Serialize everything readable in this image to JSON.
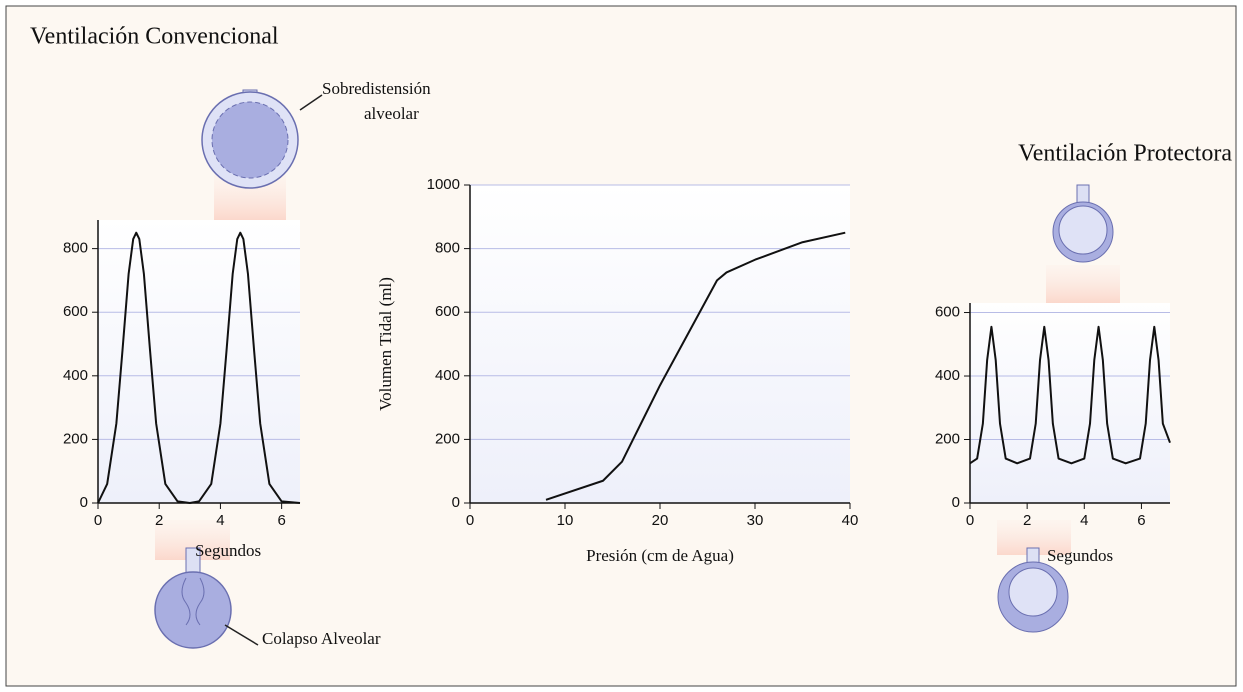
{
  "chart_data": [
    {
      "type": "line",
      "title": "Ventilación Convencional",
      "xlabel": "Segundos",
      "annotations": [
        "Sobredistensión",
        "alveolar",
        "Colapso Alveolar"
      ],
      "x": [
        0,
        0.3,
        0.6,
        0.8,
        1.0,
        1.15,
        1.25,
        1.35,
        1.5,
        1.7,
        1.9,
        2.2,
        2.6,
        3.0,
        3.3,
        3.7,
        4.0,
        4.2,
        4.4,
        4.55,
        4.65,
        4.75,
        4.9,
        5.1,
        5.3,
        5.6,
        6.0,
        6.6
      ],
      "values": [
        0,
        60,
        250,
        480,
        720,
        830,
        850,
        830,
        720,
        480,
        250,
        60,
        5,
        0,
        5,
        60,
        250,
        480,
        720,
        830,
        850,
        830,
        720,
        480,
        250,
        60,
        5,
        0
      ],
      "color": "#111111",
      "xlim": [
        0,
        6.6
      ],
      "xticks": [
        0,
        2,
        4,
        6
      ],
      "ylim": [
        0,
        890
      ],
      "yticks": [
        0,
        200,
        400,
        600,
        800
      ],
      "grid": true
    },
    {
      "type": "line",
      "xlabel": "Presión (cm de Agua)",
      "ylabel": "Volumen Tidal (ml)",
      "x": [
        8,
        14,
        16,
        18,
        20,
        22,
        24,
        26,
        27,
        30,
        35,
        39.5
      ],
      "values": [
        10,
        70,
        130,
        250,
        370,
        480,
        590,
        700,
        725,
        765,
        820,
        850
      ],
      "color": "#111111",
      "xlim": [
        0,
        40
      ],
      "xticks": [
        0,
        10,
        20,
        30,
        40
      ],
      "ylim": [
        0,
        1000
      ],
      "yticks": [
        0,
        200,
        400,
        600,
        800,
        1000
      ],
      "grid": true
    },
    {
      "type": "line",
      "title": "Ventilación Protectora",
      "xlabel": "Segundos",
      "x": [
        0,
        0.25,
        0.45,
        0.6,
        0.75,
        0.9,
        1.05,
        1.25,
        1.65,
        2.1,
        2.3,
        2.45,
        2.6,
        2.75,
        2.9,
        3.1,
        3.55,
        4.0,
        4.2,
        4.35,
        4.5,
        4.65,
        4.8,
        5.0,
        5.45,
        5.95,
        6.15,
        6.3,
        6.45,
        6.6,
        6.75,
        7.0
      ],
      "values": [
        125,
        140,
        250,
        450,
        555,
        450,
        250,
        140,
        125,
        140,
        250,
        450,
        555,
        450,
        250,
        140,
        125,
        140,
        250,
        450,
        555,
        450,
        250,
        140,
        125,
        140,
        250,
        450,
        555,
        450,
        250,
        190
      ],
      "color": "#111111",
      "xlim": [
        0,
        7
      ],
      "xticks": [
        0,
        2,
        4,
        6
      ],
      "ylim": [
        0,
        630
      ],
      "yticks": [
        0,
        200,
        400,
        600
      ],
      "grid": true
    }
  ]
}
